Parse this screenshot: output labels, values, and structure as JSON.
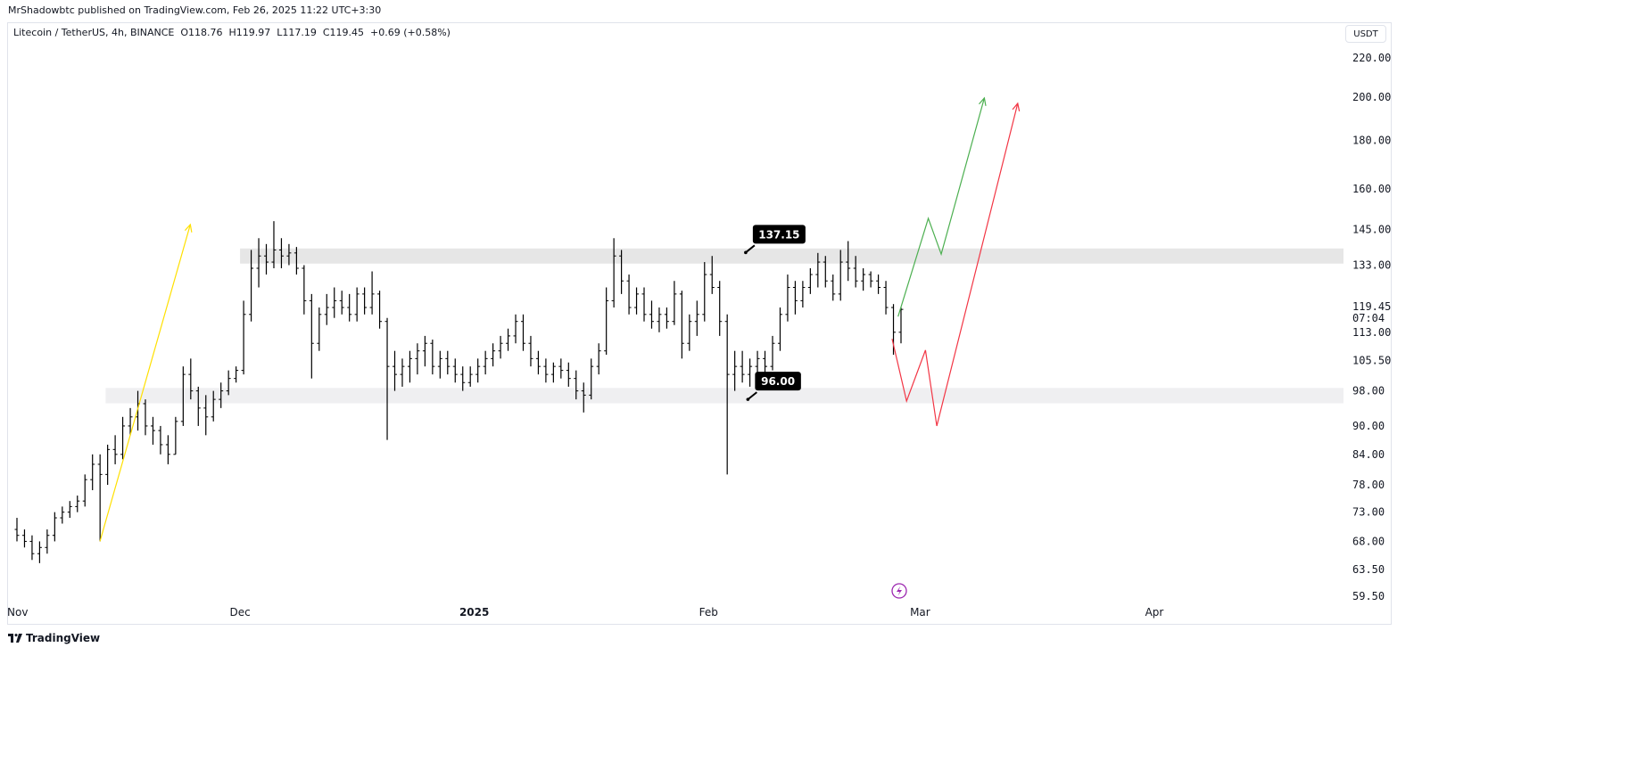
{
  "header": {
    "published": "MrShadowbtc published on TradingView.com, Feb 26, 2025 11:22 UTC+3:30",
    "symbol": "Litecoin / TetherUS, 4h, BINANCE",
    "ohlc": "O118.76  H119.97  L117.19  C119.45  +0.69 (+0.58%)",
    "currency": "USDT"
  },
  "watermark": "TradingView",
  "colors": {
    "bars": "#000000",
    "zone": "#e6e6e6",
    "zone2": "#efeff1",
    "yellow": "#ffe000",
    "green": "#4caf50",
    "red": "#f23645",
    "accent": "#9c27b0"
  },
  "chart_data": {
    "type": "ohlc-bar",
    "y_scale": "log",
    "ylim": [
      59.5,
      220
    ],
    "grid": false,
    "y_ticks": [
      "220.00",
      "200.00",
      "180.00",
      "160.00",
      "145.00",
      "133.00",
      "113.00",
      "105.50",
      "98.00",
      "90.00",
      "84.00",
      "78.00",
      "73.00",
      "68.00",
      "63.50",
      "59.50"
    ],
    "last_price": "119.45",
    "countdown": "07:04",
    "x_ticks": [
      {
        "label": "Nov",
        "date": "2024-11-01",
        "bold": false
      },
      {
        "label": "Dec",
        "date": "2024-12-01",
        "bold": false
      },
      {
        "label": "2025",
        "date": "2025-01-01",
        "bold": true
      },
      {
        "label": "Feb",
        "date": "2025-02-01",
        "bold": false
      },
      {
        "label": "Mar",
        "date": "2025-03-01",
        "bold": false
      },
      {
        "label": "Apr",
        "date": "2025-04-01",
        "bold": false
      }
    ],
    "candles": [
      [
        "2024-11-01",
        70,
        72,
        68,
        69
      ],
      [
        "2024-11-02",
        69,
        70,
        67,
        68
      ],
      [
        "2024-11-03",
        68,
        69,
        65,
        66
      ],
      [
        "2024-11-04",
        66,
        68,
        64.5,
        67
      ],
      [
        "2024-11-05",
        67,
        70,
        66,
        69
      ],
      [
        "2024-11-06",
        69,
        73,
        68,
        72
      ],
      [
        "2024-11-07",
        72,
        74,
        71,
        73
      ],
      [
        "2024-11-08",
        73,
        75,
        72,
        74
      ],
      [
        "2024-11-09",
        74,
        76,
        73,
        75
      ],
      [
        "2024-11-10",
        75,
        80,
        74,
        79
      ],
      [
        "2024-11-11",
        79,
        84,
        77,
        82
      ],
      [
        "2024-11-12",
        82,
        84,
        68,
        80
      ],
      [
        "2024-11-13",
        80,
        86,
        78,
        85
      ],
      [
        "2024-11-14",
        85,
        88,
        82,
        84
      ],
      [
        "2024-11-15",
        84,
        92,
        83,
        90
      ],
      [
        "2024-11-16",
        90,
        94,
        88,
        92
      ],
      [
        "2024-11-17",
        92,
        98,
        89,
        95
      ],
      [
        "2024-11-18",
        95,
        96,
        88,
        90
      ],
      [
        "2024-11-19",
        90,
        92,
        86,
        89
      ],
      [
        "2024-11-20",
        89,
        90,
        84,
        86
      ],
      [
        "2024-11-21",
        86,
        88,
        82,
        84
      ],
      [
        "2024-11-22",
        84,
        92,
        84,
        91
      ],
      [
        "2024-11-23",
        91,
        104,
        90,
        102
      ],
      [
        "2024-11-24",
        102,
        106,
        96,
        98
      ],
      [
        "2024-11-25",
        98,
        99,
        90,
        94
      ],
      [
        "2024-11-26",
        94,
        97,
        88,
        92
      ],
      [
        "2024-11-27",
        92,
        98,
        91,
        96
      ],
      [
        "2024-11-28",
        96,
        100,
        94,
        98
      ],
      [
        "2024-11-29",
        98,
        103,
        97,
        101
      ],
      [
        "2024-11-30",
        101,
        104,
        100,
        103
      ],
      [
        "2024-12-01",
        103,
        122,
        102,
        118
      ],
      [
        "2024-12-02",
        118,
        138,
        116,
        132
      ],
      [
        "2024-12-03",
        132,
        142,
        126,
        136
      ],
      [
        "2024-12-04",
        136,
        140,
        130,
        134
      ],
      [
        "2024-12-05",
        134,
        148,
        132,
        138
      ],
      [
        "2024-12-06",
        138,
        142,
        132,
        136
      ],
      [
        "2024-12-07",
        136,
        140,
        133,
        137
      ],
      [
        "2024-12-08",
        137,
        139,
        130,
        132
      ],
      [
        "2024-12-09",
        132,
        133,
        118,
        122
      ],
      [
        "2024-12-10",
        122,
        124,
        101,
        110
      ],
      [
        "2024-12-11",
        110,
        120,
        108,
        118
      ],
      [
        "2024-12-12",
        118,
        124,
        115,
        120
      ],
      [
        "2024-12-13",
        120,
        126,
        117,
        122
      ],
      [
        "2024-12-14",
        122,
        125,
        118,
        120
      ],
      [
        "2024-12-15",
        120,
        124,
        116,
        118
      ],
      [
        "2024-12-16",
        118,
        126,
        116,
        124
      ],
      [
        "2024-12-17",
        124,
        126,
        118,
        120
      ],
      [
        "2024-12-18",
        120,
        131,
        118,
        124
      ],
      [
        "2024-12-19",
        124,
        125,
        114,
        116
      ],
      [
        "2024-12-20",
        116,
        117,
        87,
        104
      ],
      [
        "2024-12-21",
        104,
        108,
        98,
        102
      ],
      [
        "2024-12-22",
        102,
        106,
        99,
        104
      ],
      [
        "2024-12-23",
        104,
        108,
        100,
        106
      ],
      [
        "2024-12-24",
        106,
        110,
        102,
        108
      ],
      [
        "2024-12-25",
        108,
        112,
        104,
        110
      ],
      [
        "2024-12-26",
        110,
        111,
        102,
        104
      ],
      [
        "2024-12-27",
        104,
        108,
        101,
        106
      ],
      [
        "2024-12-28",
        106,
        108,
        102,
        104
      ],
      [
        "2024-12-29",
        104,
        106,
        100,
        102
      ],
      [
        "2024-12-30",
        102,
        104,
        98,
        100
      ],
      [
        "2024-12-31",
        100,
        104,
        99,
        102
      ],
      [
        "2025-01-01",
        102,
        106,
        100,
        104
      ],
      [
        "2025-01-02",
        104,
        108,
        102,
        106
      ],
      [
        "2025-01-03",
        106,
        110,
        104,
        108
      ],
      [
        "2025-01-04",
        108,
        112,
        106,
        110
      ],
      [
        "2025-01-05",
        110,
        114,
        108,
        112
      ],
      [
        "2025-01-06",
        112,
        118,
        110,
        116
      ],
      [
        "2025-01-07",
        116,
        118,
        108,
        110
      ],
      [
        "2025-01-08",
        110,
        112,
        104,
        106
      ],
      [
        "2025-01-09",
        106,
        108,
        102,
        104
      ],
      [
        "2025-01-10",
        104,
        106,
        100,
        102
      ],
      [
        "2025-01-11",
        102,
        105,
        100,
        104
      ],
      [
        "2025-01-12",
        104,
        106,
        101,
        103
      ],
      [
        "2025-01-13",
        103,
        105,
        99,
        101
      ],
      [
        "2025-01-14",
        101,
        103,
        96,
        98
      ],
      [
        "2025-01-15",
        98,
        100,
        93,
        97
      ],
      [
        "2025-01-16",
        97,
        106,
        96,
        104
      ],
      [
        "2025-01-17",
        104,
        110,
        102,
        108
      ],
      [
        "2025-01-18",
        108,
        126,
        107,
        122
      ],
      [
        "2025-01-19",
        122,
        142,
        120,
        136
      ],
      [
        "2025-01-20",
        136,
        138,
        124,
        128
      ],
      [
        "2025-01-21",
        128,
        130,
        118,
        120
      ],
      [
        "2025-01-22",
        120,
        126,
        118,
        124
      ],
      [
        "2025-01-23",
        124,
        126,
        116,
        118
      ],
      [
        "2025-01-24",
        118,
        122,
        114,
        116
      ],
      [
        "2025-01-25",
        116,
        120,
        113,
        118
      ],
      [
        "2025-01-26",
        118,
        120,
        114,
        116
      ],
      [
        "2025-01-27",
        116,
        128,
        115,
        124
      ],
      [
        "2025-01-28",
        124,
        125,
        106,
        110
      ],
      [
        "2025-01-29",
        110,
        118,
        108,
        116
      ],
      [
        "2025-01-30",
        116,
        122,
        112,
        118
      ],
      [
        "2025-01-31",
        118,
        134,
        116,
        130
      ],
      [
        "2025-02-01",
        130,
        136,
        124,
        126
      ],
      [
        "2025-02-02",
        126,
        128,
        112,
        116
      ],
      [
        "2025-02-03",
        116,
        118,
        80,
        102
      ],
      [
        "2025-02-04",
        102,
        108,
        98,
        104
      ],
      [
        "2025-02-05",
        104,
        108,
        100,
        102
      ],
      [
        "2025-02-06",
        102,
        106,
        99,
        104
      ],
      [
        "2025-02-07",
        104,
        108,
        100,
        106
      ],
      [
        "2025-02-08",
        106,
        108,
        102,
        104
      ],
      [
        "2025-02-09",
        104,
        112,
        103,
        110
      ],
      [
        "2025-02-10",
        110,
        120,
        108,
        118
      ],
      [
        "2025-02-11",
        118,
        130,
        116,
        126
      ],
      [
        "2025-02-12",
        126,
        128,
        118,
        122
      ],
      [
        "2025-02-13",
        122,
        128,
        120,
        126
      ],
      [
        "2025-02-14",
        126,
        132,
        124,
        130
      ],
      [
        "2025-02-15",
        130,
        137,
        126,
        134
      ],
      [
        "2025-02-16",
        134,
        136,
        126,
        128
      ],
      [
        "2025-02-17",
        128,
        130,
        122,
        124
      ],
      [
        "2025-02-18",
        124,
        138,
        122,
        134
      ],
      [
        "2025-02-19",
        134,
        141,
        128,
        132
      ],
      [
        "2025-02-20",
        132,
        136,
        126,
        128
      ],
      [
        "2025-02-21",
        128,
        132,
        125,
        130
      ],
      [
        "2025-02-22",
        130,
        131,
        126,
        128
      ],
      [
        "2025-02-23",
        128,
        130,
        124,
        126
      ],
      [
        "2025-02-24",
        126,
        128,
        118,
        120
      ],
      [
        "2025-02-25",
        120,
        121,
        107,
        113
      ],
      [
        "2025-02-26",
        113,
        120,
        110,
        119.45
      ]
    ],
    "drawings": {
      "zones": [
        {
          "from": "2024-12-01T00:00",
          "low": 133.5,
          "high": 138.5,
          "color": "#e6e6e6"
        },
        {
          "from": "2024-11-13T05:00",
          "low": 95.1,
          "high": 98.7,
          "color": "#efeff1"
        }
      ],
      "price_labels": [
        {
          "text": "137.15",
          "date": "2025-02-05T22:00",
          "price": 137.15
        },
        {
          "text": "96.00",
          "date": "2025-02-06T05:00",
          "price": 96.0
        }
      ],
      "paths": [
        {
          "color": "#ffe000",
          "points": [
            [
              "2024-11-12T11:00",
              68
            ],
            [
              "2024-11-24T10:00",
              146.8
            ]
          ]
        },
        {
          "color": "#4caf50",
          "points": [
            [
              "2025-02-26T02:00",
              117.4
            ],
            [
              "2025-03-02T02:00",
              149
            ],
            [
              "2025-03-03T19:00",
              136.6
            ],
            [
              "2025-03-09T12:00",
              199.6
            ]
          ]
        },
        {
          "color": "#f23645",
          "points": [
            [
              "2025-02-25T07:00",
              111.2
            ],
            [
              "2025-02-27T05:00",
              95.6
            ],
            [
              "2025-03-01T17:00",
              108.2
            ],
            [
              "2025-03-03T05:00",
              90.0
            ],
            [
              "2025-03-13T22:00",
              197
            ]
          ]
        }
      ]
    }
  }
}
